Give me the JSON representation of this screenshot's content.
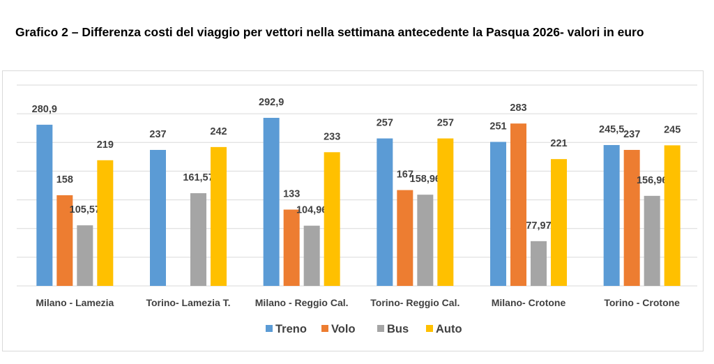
{
  "chart_data": {
    "type": "bar",
    "title": "Grafico 2 – Differenza costi del viaggio per vettori nella settimana antecedente la Pasqua 2026- valori in euro",
    "categories": [
      "Milano - Lamezia",
      "Torino- Lamezia T.",
      "Milano - Reggio Cal.",
      "Torino- Reggio Cal.",
      "Milano- Crotone",
      "Torino - Crotone"
    ],
    "series": [
      {
        "name": "Treno",
        "color": "#5b9bd5",
        "values": [
          280.9,
          237,
          292.9,
          257,
          251,
          245.5
        ],
        "labels": [
          "280,9",
          "237",
          "292,9",
          "257",
          "251",
          "245,5"
        ]
      },
      {
        "name": "Volo",
        "color": "#ed7d31",
        "values": [
          158,
          null,
          133,
          167,
          283,
          237
        ],
        "labels": [
          "158",
          "",
          "133",
          "167",
          "283",
          "237"
        ]
      },
      {
        "name": "Bus",
        "color": "#a5a5a5",
        "values": [
          105.57,
          161.57,
          104.96,
          158.96,
          77.97,
          156.96
        ],
        "labels": [
          "105,57",
          "161,57",
          "104,96",
          "158,96",
          "77,97",
          "156,96"
        ]
      },
      {
        "name": "Auto",
        "color": "#ffc000",
        "values": [
          219,
          242,
          233,
          257,
          221,
          245
        ],
        "labels": [
          "219",
          "242",
          "233",
          "257",
          "221",
          "245"
        ]
      }
    ],
    "ylim": [
      0,
      350
    ],
    "ytick_step": 50,
    "y_axis_labels_shown": false,
    "grid": true,
    "legend": "bottom"
  }
}
